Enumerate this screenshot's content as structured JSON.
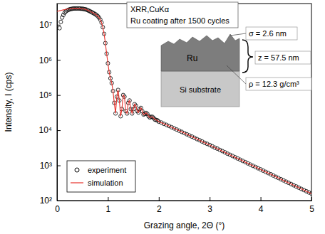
{
  "chart_data": {
    "type": "line",
    "x_label": "Grazing angle, 2Θ (°)",
    "y_label": "Intensity, I (cps)",
    "xlim": [
      0,
      5
    ],
    "xticks": [
      0,
      1,
      2,
      3,
      4,
      5
    ],
    "ylim": [
      100,
      40000000
    ],
    "yticks": [
      {
        "value": 100,
        "label": "10²"
      },
      {
        "value": 1000,
        "label": "10³"
      },
      {
        "value": 10000,
        "label": "10⁴"
      },
      {
        "value": 100000,
        "label": "10⁵"
      },
      {
        "value": 1000000,
        "label": "10⁶"
      },
      {
        "value": 10000000,
        "label": "10⁷"
      }
    ],
    "log": "y",
    "grid": false,
    "legend": "lower left",
    "annotations": {
      "note": [
        "XRR,CuKα",
        "Ru coating after 1500 cycles"
      ],
      "layer": "Ru",
      "substrate": "Si substrate",
      "roughness": "σ = 2.6 nm",
      "thickness": "z = 57.5 nm",
      "density": "ρ = 12.3 g/cm³"
    },
    "series": [
      {
        "name": "experiment",
        "type": "scatter",
        "marker": "circle",
        "color": "#000000",
        "x": [
          0.05,
          0.075,
          0.1,
          0.125,
          0.15,
          0.175,
          0.2,
          0.225,
          0.25,
          0.275,
          0.3,
          0.325,
          0.35,
          0.375,
          0.4,
          0.425,
          0.45,
          0.475,
          0.5,
          0.525,
          0.55,
          0.575,
          0.6,
          0.625,
          0.65,
          0.675,
          0.7,
          0.725,
          0.75,
          0.775,
          0.8,
          0.825,
          0.85,
          0.875,
          0.9,
          0.925,
          0.95,
          0.975,
          1.0,
          1.025,
          1.05,
          1.075,
          1.1,
          1.125,
          1.15,
          1.175,
          1.2,
          1.225,
          1.25,
          1.275,
          1.3,
          1.325,
          1.35,
          1.375,
          1.4,
          1.425,
          1.45,
          1.475,
          1.5,
          1.525,
          1.55,
          1.575,
          1.6,
          1.625,
          1.65,
          1.675,
          1.7,
          1.725,
          1.75,
          1.775,
          1.8,
          1.825,
          1.85,
          1.875,
          1.9,
          1.925,
          1.95,
          1.975,
          2.0,
          2.05,
          2.1,
          2.15,
          2.2,
          2.25,
          2.3,
          2.35,
          2.4,
          2.45,
          2.5,
          2.55,
          2.6,
          2.65,
          2.7,
          2.75,
          2.8,
          2.85,
          2.9,
          2.95,
          3.0,
          3.05,
          3.1,
          3.15,
          3.2,
          3.25,
          3.3,
          3.35,
          3.4,
          3.45,
          3.5,
          3.55,
          3.6,
          3.65,
          3.7,
          3.75,
          3.8,
          3.85,
          3.9,
          3.95,
          4.0,
          4.05,
          4.1,
          4.15,
          4.2,
          4.25,
          4.3,
          4.35,
          4.4,
          4.45,
          4.5,
          4.55,
          4.6,
          4.65,
          4.7,
          4.75,
          4.8,
          4.85,
          4.9,
          4.95,
          5.0
        ],
        "values": [
          8000000,
          12000000,
          16000000,
          19000000,
          22000000,
          24000000,
          25500000,
          26500000,
          27500000,
          28000000,
          28500000,
          29000000,
          29000000,
          29000000,
          29000000,
          29000000,
          29000000,
          28500000,
          28500000,
          28000000,
          27500000,
          27000000,
          26000000,
          25000000,
          24000000,
          23000000,
          22000000,
          21000000,
          20000000,
          19000000,
          17500000,
          16000000,
          14000000,
          11500000,
          8500000,
          5500000,
          3000000,
          1500000,
          800000,
          450000,
          300000,
          220000,
          130000,
          60000,
          30000,
          90000,
          140000,
          70000,
          25000,
          40000,
          100000,
          90000,
          35000,
          30000,
          60000,
          70000,
          40000,
          30000,
          40000,
          55000,
          50000,
          35000,
          32000,
          40000,
          43000,
          35000,
          28000,
          29000,
          31000,
          29000,
          25000,
          23000,
          24000,
          24000,
          22000,
          20000,
          19500,
          19000,
          17500,
          16500,
          15200,
          14200,
          13200,
          12200,
          11300,
          10500,
          9700,
          9000,
          8300,
          7700,
          7100,
          6600,
          6100,
          5600,
          5200,
          4800,
          4400,
          4100,
          3800,
          3500,
          3200,
          3000,
          2750,
          2550,
          2350,
          2150,
          2000,
          1850,
          1700,
          1570,
          1450,
          1340,
          1240,
          1140,
          1050,
          970,
          900,
          830,
          770,
          710,
          655,
          605,
          560,
          515,
          475,
          440,
          405,
          375,
          345,
          320,
          295,
          272,
          252,
          233,
          215,
          199,
          184,
          170,
          158
        ]
      },
      {
        "name": "simulation",
        "type": "line",
        "line_style": "solid",
        "color": "#e8322c",
        "x": [
          0,
          0.025,
          0.05,
          0.075,
          0.1,
          0.125,
          0.15,
          0.175,
          0.2,
          0.225,
          0.25,
          0.275,
          0.3,
          0.325,
          0.35,
          0.375,
          0.4,
          0.425,
          0.45,
          0.475,
          0.5,
          0.525,
          0.55,
          0.575,
          0.6,
          0.625,
          0.65,
          0.675,
          0.7,
          0.725,
          0.75,
          0.775,
          0.8,
          0.825,
          0.85,
          0.875,
          0.9,
          0.925,
          0.95,
          0.975,
          1.0,
          1.025,
          1.05,
          1.075,
          1.1,
          1.125,
          1.15,
          1.175,
          1.2,
          1.225,
          1.25,
          1.275,
          1.3,
          1.325,
          1.35,
          1.375,
          1.4,
          1.425,
          1.45,
          1.475,
          1.5,
          1.525,
          1.55,
          1.575,
          1.6,
          1.625,
          1.65,
          1.675,
          1.7,
          1.725,
          1.75,
          1.775,
          1.8,
          1.825,
          1.85,
          1.875,
          1.9,
          1.925,
          1.95,
          1.975,
          2.0,
          2.1,
          2.2,
          2.3,
          2.4,
          2.5,
          2.6,
          2.7,
          2.8,
          2.9,
          3.0,
          3.1,
          3.2,
          3.3,
          3.4,
          3.5,
          3.6,
          3.7,
          3.8,
          3.9,
          4.0,
          4.1,
          4.2,
          4.3,
          4.4,
          4.5,
          4.6,
          4.7,
          4.8,
          4.9,
          5.0
        ],
        "values": [
          24000000,
          24500000,
          25000000,
          25500000,
          26000000,
          26500000,
          27000000,
          27500000,
          28000000,
          28300000,
          28600000,
          28800000,
          29000000,
          29000000,
          29000000,
          29000000,
          29000000,
          29000000,
          29000000,
          28500000,
          28500000,
          28000000,
          27500000,
          27000000,
          26000000,
          25000000,
          24000000,
          23000000,
          22000000,
          21000000,
          20000000,
          19000000,
          17500000,
          16000000,
          14000000,
          11500000,
          8500000,
          5500000,
          3000000,
          1500000,
          800000,
          450000,
          300000,
          220000,
          130000,
          60000,
          30000,
          90000,
          140000,
          70000,
          25000,
          40000,
          100000,
          90000,
          35000,
          30000,
          60000,
          70000,
          40000,
          30000,
          40000,
          55000,
          50000,
          35000,
          32000,
          40000,
          43000,
          35000,
          28000,
          29000,
          31000,
          29000,
          25000,
          23000,
          24000,
          24000,
          22000,
          20000,
          19500,
          19000,
          17500,
          15200,
          13200,
          11300,
          9700,
          8300,
          7100,
          6100,
          5200,
          4400,
          3800,
          3200,
          2750,
          2350,
          2000,
          1700,
          1450,
          1240,
          1050,
          900,
          770,
          655,
          560,
          475,
          405,
          345,
          295,
          252,
          215,
          184,
          158
        ]
      }
    ]
  }
}
